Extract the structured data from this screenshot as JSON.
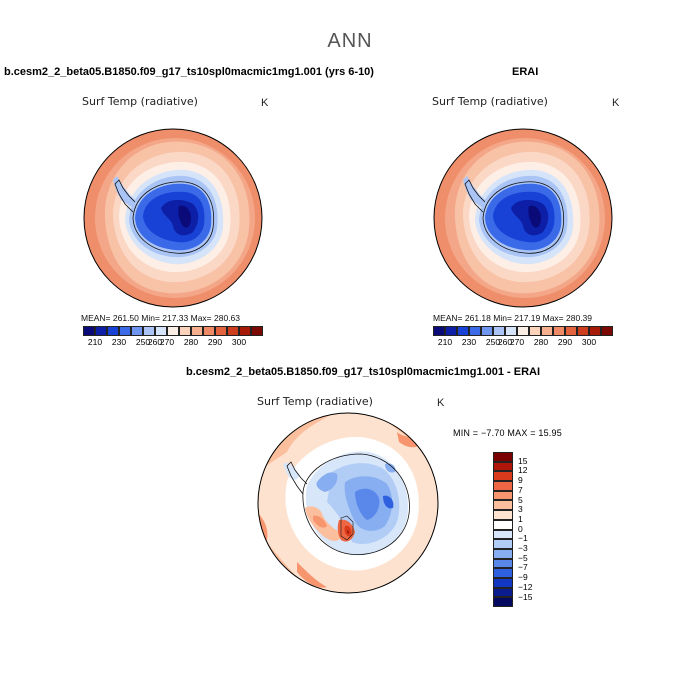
{
  "page": {
    "title": "ANN"
  },
  "panels": [
    {
      "case_title": "b.cesm2_2_beta05.B1850.f09_g17_ts10spl0macmic1mg1.001 (yrs 6-10)",
      "variable": "Surf Temp (radiative)",
      "units": "K",
      "stats_text": "MEAN= 261.50   Min= 217.33   Max= 280.63",
      "colorbar": {
        "ticks": [
          "210",
          "230",
          "250",
          "260",
          "270",
          "280",
          "290",
          "300"
        ],
        "colors": [
          "#0a0a78",
          "#0d1fa6",
          "#1842d6",
          "#3b6ae8",
          "#6e96f0",
          "#a9c4f5",
          "#d6e4fa",
          "#fbeee4",
          "#fbd3bb",
          "#f6b08f",
          "#ef8a66",
          "#e3633f",
          "#cf3d1f",
          "#a81a08",
          "#7a0a03"
        ]
      }
    },
    {
      "case_title": "ERAI",
      "variable": "Surf Temp (radiative)",
      "units": "K",
      "stats_text": "MEAN= 261.18   Min= 217.19   Max= 280.39",
      "colorbar": {
        "ticks": [
          "210",
          "230",
          "250",
          "260",
          "270",
          "280",
          "290",
          "300"
        ],
        "colors": [
          "#0a0a78",
          "#0d1fa6",
          "#1842d6",
          "#3b6ae8",
          "#6e96f0",
          "#a9c4f5",
          "#d6e4fa",
          "#fbeee4",
          "#fbd3bb",
          "#f6b08f",
          "#ef8a66",
          "#e3633f",
          "#cf3d1f",
          "#a81a08",
          "#7a0a03"
        ]
      }
    },
    {
      "case_title": "b.cesm2_2_beta05.B1850.f09_g17_ts10spl0macmic1mg1.001 - ERAI",
      "variable": "Surf Temp (radiative)",
      "units": "K",
      "stats_text": "MIN =  −7.70  MAX =  15.95",
      "colorbar": {
        "ticks": [
          "15",
          "12",
          "9",
          "7",
          "5",
          "3",
          "1",
          "0",
          "−1",
          "−3",
          "−5",
          "−7",
          "−9",
          "−12",
          "−15"
        ],
        "colors": [
          "#7a0000",
          "#b0150a",
          "#d93a1c",
          "#ee6744",
          "#f7956f",
          "#fbbf9e",
          "#fde2cf",
          "#ffffff",
          "#d8e6fa",
          "#b2cdf5",
          "#87aef0",
          "#5a88ea",
          "#2f60e0",
          "#1238c2",
          "#0a1c8e",
          "#050a60"
        ]
      }
    }
  ]
}
